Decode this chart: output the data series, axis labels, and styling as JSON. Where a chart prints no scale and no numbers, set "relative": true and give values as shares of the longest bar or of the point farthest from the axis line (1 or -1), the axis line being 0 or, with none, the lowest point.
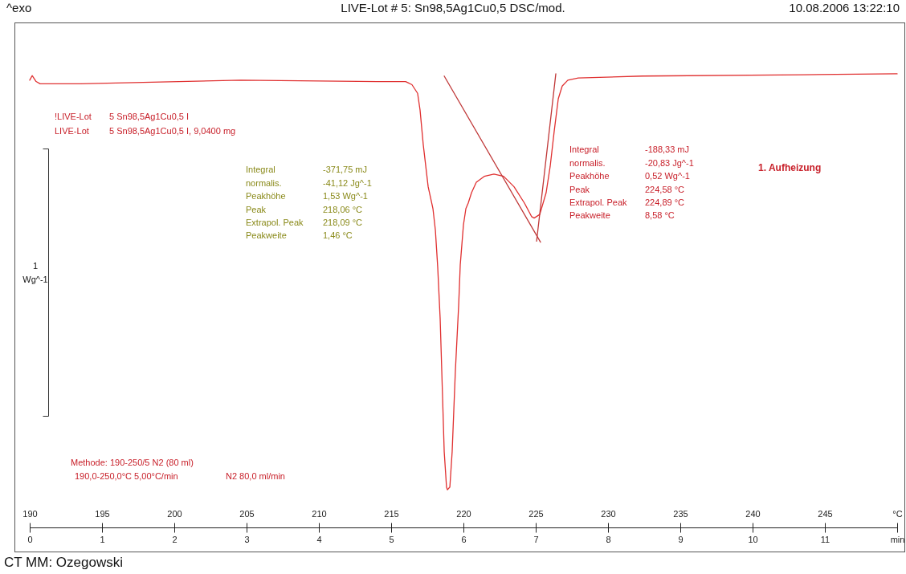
{
  "chart_data": {
    "type": "line",
    "title": "LIVE-Lot # 5: Sn98,5Ag1Cu0,5 DSC/mod.",
    "relative": true,
    "ylabel": "1 Wg^-1",
    "xlim": [
      190,
      250
    ],
    "xticks": [
      190,
      195,
      200,
      205,
      210,
      215,
      220,
      225,
      230,
      235,
      240,
      245,
      {
        "value": 250,
        "label": "°C"
      }
    ],
    "x2lim": [
      0,
      12
    ],
    "x2ticks": [
      0,
      1,
      2,
      3,
      4,
      5,
      6,
      7,
      8,
      9,
      10,
      11,
      {
        "value": 12,
        "label": "min"
      }
    ],
    "annotations": [
      "^exo",
      "10.08.2006 13:22:10",
      "!LIVE-Lot",
      "5 Sn98,5Ag1Cu0,5 I",
      "LIVE-Lot",
      "5 Sn98,5Ag1Cu0,5 I, 9,0400 mg",
      "Integral\n  normalis.\nPeakhöhe\nPeak\nExtrapol. Peak\nPeakweite",
      "-371,75 mJ\n-41,12 Jg^-1\n1,53 Wg^-1\n218,06 °C\n218,09 °C\n1,46 °C",
      "Integral\n  normalis.\nPeakhöhe\nPeak\nExtrapol. Peak\nPeakweite",
      "-188,33 mJ\n-20,83 Jg^-1\n0,52 Wg^-1\n224,58 °C\n224,89 °C\n8,58 °C",
      "1. Aufheizung",
      "Methode: 190-250/5   N2 (80 ml)",
      "190,0-250,0°C 5,00°C/min",
      "N2 80,0 ml/min",
      "CT MM: Ozegowski"
    ],
    "series": [
      {
        "type": "line",
        "color": "#e03030",
        "x": [
          190.0,
          190.17,
          190.44,
          190.72,
          193.5,
          204.6,
          214.06,
          216.0,
          216.44,
          216.83,
          217.0,
          217.22,
          217.56,
          217.89,
          218.06,
          218.22,
          218.39,
          218.56,
          218.67,
          218.83,
          218.89,
          219.06,
          219.22,
          219.44,
          219.67,
          219.78,
          220.0,
          220.17,
          220.33,
          220.56,
          220.89,
          221.44,
          222.11,
          222.78,
          223.5,
          224.22,
          224.72,
          224.89,
          225.28,
          225.72,
          226.0,
          226.28,
          226.56,
          226.83,
          227.22,
          227.94,
          232.39,
          243.5,
          250.0
        ],
        "values": [
          0.986,
          0.996,
          0.983,
          0.978,
          0.978,
          0.986,
          0.983,
          0.983,
          0.976,
          0.957,
          0.92,
          0.844,
          0.751,
          0.703,
          0.655,
          0.574,
          0.46,
          0.283,
          0.167,
          0.089,
          0.083,
          0.089,
          0.167,
          0.344,
          0.49,
          0.579,
          0.667,
          0.703,
          0.715,
          0.738,
          0.761,
          0.774,
          0.779,
          0.774,
          0.751,
          0.715,
          0.685,
          0.682,
          0.69,
          0.738,
          0.796,
          0.874,
          0.945,
          0.973,
          0.986,
          0.991,
          0.995,
          0.998,
          1.0
        ]
      },
      {
        "type": "line",
        "color": "#c03838",
        "x": [
          218.67,
          225.33
        ],
        "values": [
          0.995,
          0.629
        ]
      },
      {
        "type": "line",
        "color": "#c03838",
        "x": [
          226.39,
          225.06
        ],
        "values": [
          1.0,
          0.631
        ]
      }
    ]
  }
}
